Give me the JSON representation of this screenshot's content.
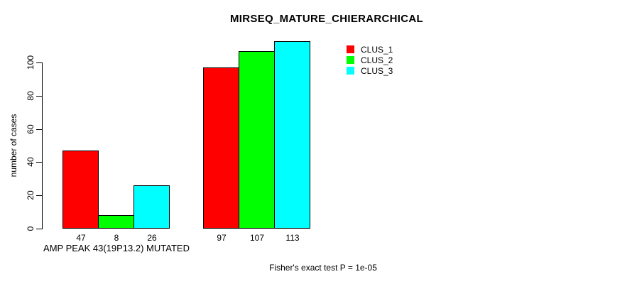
{
  "chart_data": {
    "type": "bar",
    "title": "MIRSEQ_MATURE_CHIERARCHICAL",
    "ylabel": "number of cases",
    "xlabel": "",
    "yticks": [
      0,
      20,
      40,
      60,
      80,
      100
    ],
    "ylim": [
      0,
      117
    ],
    "grid": false,
    "legend_position": "top-right",
    "group_labels": [
      "AMP PEAK 43(19P13.2) MUTATED",
      ""
    ],
    "series": [
      {
        "name": "CLUS_1",
        "color": "#ff0000",
        "values": [
          47,
          97
        ]
      },
      {
        "name": "CLUS_2",
        "color": "#00ff00",
        "values": [
          8,
          107
        ]
      },
      {
        "name": "CLUS_3",
        "color": "#00ffff",
        "values": [
          26,
          113
        ]
      }
    ],
    "bar_value_labels": [
      [
        "47",
        "8",
        "26"
      ],
      [
        "97",
        "107",
        "113"
      ]
    ],
    "footnote": "Fisher's exact test P = 1e-05"
  },
  "colors": {
    "background": "#ffffff",
    "axis": "#000000",
    "text": "#000000",
    "bar_border": "#000000"
  }
}
